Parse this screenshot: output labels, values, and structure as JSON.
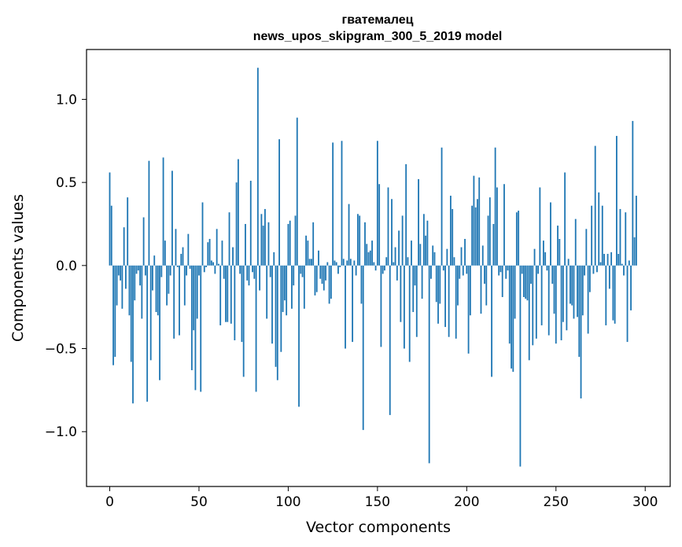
{
  "chart_data": {
    "type": "bar",
    "title": "гватемалец",
    "subtitle": "news_upos_skipgram_300_5_2019 model",
    "xlabel": "Vector components",
    "ylabel": "Components values",
    "xlim": [
      -13,
      314
    ],
    "ylim": [
      -1.33,
      1.3
    ],
    "xticks": [
      0,
      50,
      100,
      150,
      200,
      250,
      300
    ],
    "xtick_labels": [
      "0",
      "50",
      "100",
      "150",
      "200",
      "250",
      "300"
    ],
    "yticks": [
      -1.0,
      -0.5,
      0.0,
      0.5,
      1.0
    ],
    "ytick_labels": [
      "−1.0",
      "−0.5",
      "0.0",
      "0.5",
      "1.0"
    ],
    "bar_color": "#1f77b4",
    "values": [
      0.56,
      0.36,
      -0.6,
      -0.55,
      -0.24,
      -0.06,
      -0.09,
      -0.26,
      0.23,
      -0.14,
      0.41,
      -0.3,
      -0.58,
      -0.83,
      -0.21,
      -0.05,
      -0.03,
      -0.12,
      -0.32,
      0.29,
      -0.06,
      -0.82,
      0.63,
      -0.57,
      -0.15,
      0.06,
      -0.28,
      -0.3,
      -0.69,
      -0.07,
      0.65,
      0.15,
      -0.24,
      -0.17,
      -0.06,
      0.57,
      -0.44,
      0.22,
      -0.01,
      -0.42,
      0.07,
      0.11,
      -0.24,
      -0.06,
      0.19,
      -0.02,
      -0.63,
      -0.39,
      -0.75,
      -0.32,
      -0.06,
      -0.76,
      0.38,
      -0.04,
      -0.01,
      0.14,
      0.16,
      0.03,
      0.02,
      -0.05,
      0.22,
      0.01,
      -0.36,
      0.15,
      -0.08,
      -0.34,
      -0.34,
      0.32,
      -0.35,
      0.11,
      -0.45,
      0.5,
      0.64,
      -0.05,
      -0.46,
      -0.67,
      0.25,
      -0.09,
      -0.12,
      0.51,
      -0.04,
      -0.08,
      -0.76,
      1.19,
      -0.15,
      0.31,
      0.24,
      0.34,
      -0.32,
      0.26,
      -0.07,
      -0.47,
      0.08,
      -0.61,
      -0.69,
      0.76,
      -0.52,
      -0.28,
      -0.21,
      -0.3,
      0.25,
      0.27,
      -0.26,
      -0.12,
      0.3,
      0.89,
      -0.85,
      -0.05,
      -0.07,
      -0.26,
      0.18,
      0.15,
      0.04,
      0.04,
      0.26,
      -0.18,
      -0.16,
      0.09,
      -0.08,
      -0.11,
      -0.15,
      -0.09,
      0.02,
      -0.23,
      -0.2,
      0.74,
      0.03,
      0.02,
      -0.05,
      -0.01,
      0.75,
      0.04,
      -0.5,
      0.03,
      0.37,
      0.04,
      -0.46,
      0.03,
      -0.06,
      0.31,
      0.3,
      -0.23,
      -0.99,
      0.26,
      0.13,
      0.08,
      0.09,
      0.15,
      0.02,
      -0.03,
      0.75,
      0.49,
      -0.49,
      -0.05,
      -0.03,
      0.05,
      0.47,
      -0.9,
      0.4,
      0.02,
      0.11,
      -0.09,
      0.21,
      -0.34,
      0.3,
      -0.5,
      0.61,
      0.05,
      -0.58,
      0.15,
      -0.28,
      -0.12,
      -0.43,
      0.52,
      0.13,
      -0.2,
      0.31,
      0.18,
      0.27,
      -1.19,
      -0.08,
      0.12,
      0.08,
      -0.22,
      -0.35,
      -0.23,
      0.71,
      -0.03,
      -0.37,
      0.1,
      -0.43,
      0.42,
      0.34,
      0.05,
      -0.44,
      -0.24,
      -0.08,
      0.11,
      -0.06,
      0.16,
      -0.05,
      -0.53,
      -0.3,
      0.36,
      0.54,
      0.35,
      0.4,
      0.53,
      -0.29,
      0.12,
      -0.11,
      -0.24,
      0.3,
      0.41,
      -0.67,
      0.25,
      0.71,
      0.47,
      -0.06,
      -0.04,
      -0.19,
      0.49,
      -0.08,
      -0.03,
      -0.47,
      -0.62,
      -0.64,
      -0.32,
      0.32,
      0.33,
      -1.21,
      -0.05,
      -0.19,
      -0.2,
      -0.21,
      -0.57,
      -0.11,
      -0.48,
      0.1,
      -0.44,
      -0.05,
      0.47,
      -0.36,
      0.15,
      0.08,
      -0.03,
      -0.42,
      0.38,
      -0.11,
      -0.29,
      -0.47,
      0.24,
      0.16,
      -0.45,
      -0.34,
      0.56,
      -0.39,
      0.04,
      -0.23,
      -0.24,
      -0.32,
      0.28,
      -0.31,
      -0.55,
      -0.8,
      -0.3,
      -0.06,
      0.22,
      -0.41,
      -0.16,
      0.36,
      -0.05,
      0.72,
      -0.04,
      0.44,
      0.02,
      0.36,
      0.07,
      -0.36,
      0.07,
      -0.14,
      0.08,
      -0.33,
      -0.35,
      0.78,
      0.07,
      0.34,
      0.01,
      -0.06,
      0.32,
      -0.46,
      0.03,
      -0.27,
      0.87,
      0.17,
      0.42
    ]
  }
}
